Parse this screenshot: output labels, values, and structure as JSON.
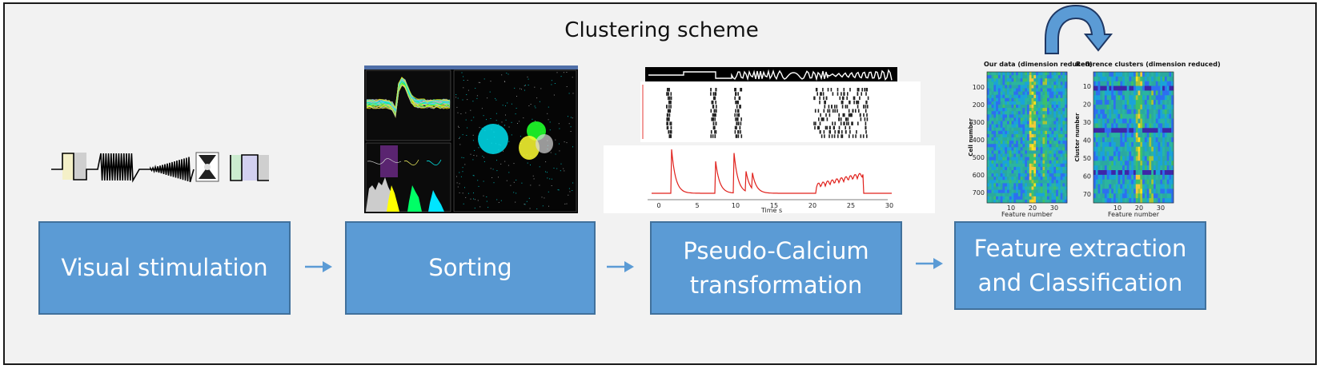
{
  "title": "Clustering scheme",
  "steps": [
    {
      "label": "Visual stimulation"
    },
    {
      "label": "Sorting"
    },
    {
      "label": "Pseudo-Calcium\ntransformation"
    },
    {
      "label": "Feature extraction\nand Classification"
    }
  ],
  "heatmaps": {
    "left_title": "Our data (dimension reduced)",
    "right_title": "Reference clusters (dimension reduced)",
    "left_ylabel": "Cell number",
    "right_ylabel": "Cluster number",
    "xlabel": "Feature number",
    "left_yticks": [
      "100",
      "200",
      "300",
      "400",
      "500",
      "600",
      "700"
    ],
    "right_yticks": [
      "10",
      "20",
      "30",
      "40",
      "50",
      "60",
      "70"
    ],
    "xticks": [
      "10",
      "20",
      "30"
    ]
  },
  "calcium": {
    "xlabel": "Time s",
    "xticks": [
      "0",
      "5",
      "10",
      "15",
      "20",
      "25",
      "30"
    ]
  },
  "colors": {
    "box_fill": "#5b9bd5",
    "box_border": "#41719c",
    "arrow": "#5b9bd5",
    "background": "#f2f2f2",
    "curve": "#e0201b"
  }
}
